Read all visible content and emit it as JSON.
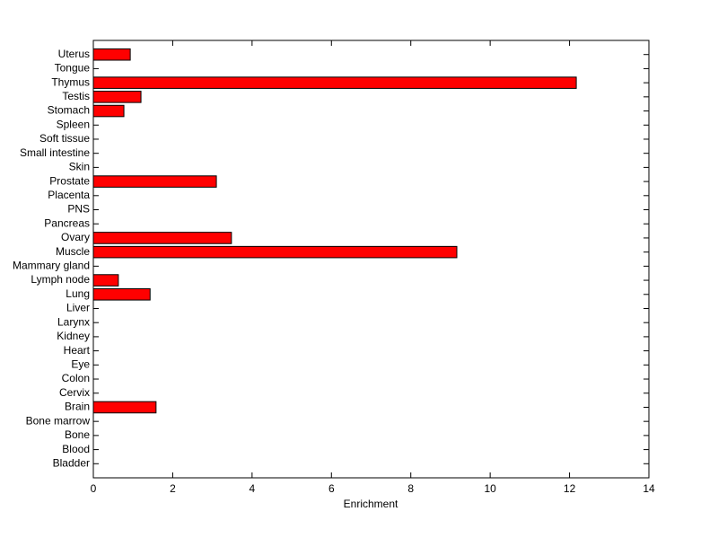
{
  "chart_data": {
    "type": "barh",
    "xlabel": "Enrichment",
    "categories": [
      "Uterus",
      "Tongue",
      "Thymus",
      "Testis",
      "Stomach",
      "Spleen",
      "Soft tissue",
      "Small intestine",
      "Skin",
      "Prostate",
      "Placenta",
      "PNS",
      "Pancreas",
      "Ovary",
      "Muscle",
      "Mammary gland",
      "Lymph node",
      "Lung",
      "Liver",
      "Larynx",
      "Kidney",
      "Heart",
      "Eye",
      "Colon",
      "Cervix",
      "Brain",
      "Bone marrow",
      "Bone",
      "Blood",
      "Bladder"
    ],
    "values": [
      0.93,
      0,
      12.17,
      1.2,
      0.77,
      0,
      0,
      0,
      0,
      3.1,
      0,
      0,
      0,
      3.48,
      9.16,
      0,
      0.63,
      1.43,
      0,
      0,
      0,
      0,
      0,
      0,
      0,
      1.58,
      0,
      0,
      0,
      0
    ],
    "color": "#ff0000",
    "xlim": [
      0,
      14
    ],
    "xticks": [
      0,
      2,
      4,
      6,
      8,
      10,
      12,
      14
    ]
  }
}
